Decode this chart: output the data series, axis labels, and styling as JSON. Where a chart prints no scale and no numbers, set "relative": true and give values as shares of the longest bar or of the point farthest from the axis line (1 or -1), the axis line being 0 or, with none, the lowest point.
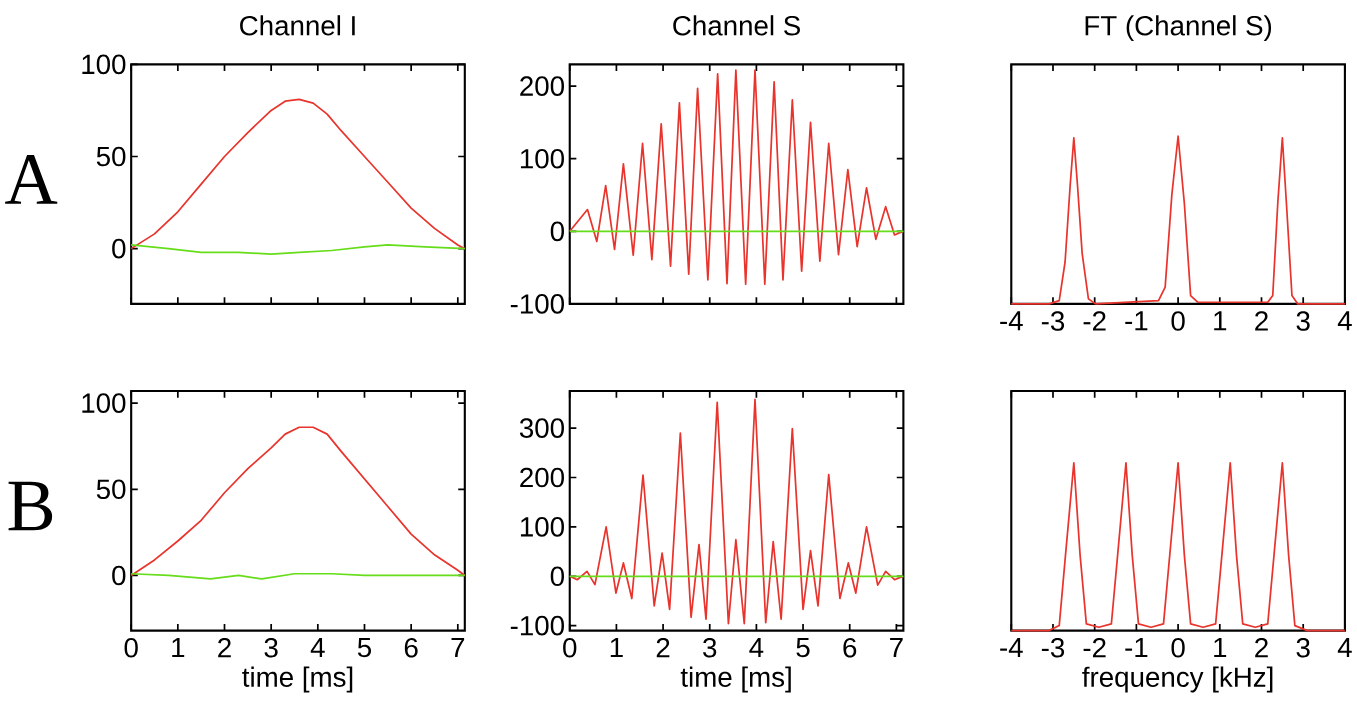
{
  "chart_data": [
    {
      "type": "line",
      "title": "Channel I",
      "annotations": [
        "A"
      ],
      "xlim": [
        0,
        7.15
      ],
      "ylim": [
        -30,
        100
      ],
      "xticks": [
        0,
        1,
        2,
        3,
        4,
        5,
        6,
        7
      ],
      "yticks": [
        0,
        50,
        100
      ],
      "tick_labels": "y",
      "series": [
        {
          "color": "#e8342c",
          "x": [
            0,
            0.5,
            1,
            1.5,
            2,
            2.5,
            3,
            3.3,
            3.6,
            3.9,
            4.2,
            4.5,
            5,
            5.5,
            6,
            6.5,
            7,
            7.15
          ],
          "values": [
            0,
            8,
            20,
            35,
            50,
            63,
            75,
            80,
            81,
            79,
            73,
            64,
            50,
            36,
            22,
            11,
            2,
            0
          ]
        },
        {
          "color": "#66dd1a",
          "x": [
            0,
            0.8,
            1.5,
            2.3,
            3,
            3.6,
            4.3,
            5,
            5.5,
            6.3,
            7.15
          ],
          "values": [
            2,
            0,
            -2,
            -2,
            -3,
            -2,
            -1,
            1,
            2,
            1,
            0
          ]
        }
      ]
    },
    {
      "type": "line",
      "title": "Channel S",
      "xlim": [
        0,
        7.15
      ],
      "ylim": [
        -100,
        230
      ],
      "xticks": [
        0,
        1,
        2,
        3,
        4,
        5,
        6,
        7
      ],
      "yticks": [
        -100,
        0,
        100,
        200
      ],
      "tick_labels": "y",
      "series": [
        {
          "color": "#e8342c",
          "x": [
            0,
            0.38,
            0.58,
            0.77,
            0.96,
            1.15,
            1.36,
            1.56,
            1.76,
            1.96,
            2.16,
            2.35,
            2.55,
            2.74,
            2.96,
            3.17,
            3.37,
            3.56,
            3.77,
            3.97,
            4.18,
            4.38,
            4.57,
            4.77,
            4.97,
            5.16,
            5.36,
            5.55,
            5.76,
            5.96,
            6.16,
            6.36,
            6.56,
            6.77,
            6.96,
            7.15
          ],
          "values": [
            0,
            30,
            -14,
            63,
            -25,
            93,
            -33,
            121,
            -39,
            148,
            -48,
            177,
            -59,
            197,
            -67,
            217,
            -72,
            222,
            -73,
            222,
            -73,
            206,
            -67,
            181,
            -55,
            150,
            -41,
            121,
            -32,
            85,
            -21,
            60,
            -11,
            34,
            -5,
            0
          ]
        },
        {
          "color": "#66dd1a",
          "x": [
            0,
            2,
            4,
            6,
            7.15
          ],
          "values": [
            0,
            0,
            0,
            0,
            0
          ]
        }
      ]
    },
    {
      "type": "line",
      "title": "FT (Channel S)",
      "relative": true,
      "xlim": [
        -4,
        4
      ],
      "xticks": [
        -4,
        -3,
        -2,
        -1,
        0,
        1,
        2,
        3,
        4
      ],
      "tick_labels": "x",
      "series": [
        {
          "color": "#e8342c",
          "x": [
            -4,
            -3.09,
            -2.85,
            -2.71,
            -2.59,
            -2.5,
            -2.41,
            -2.3,
            -2.15,
            -1.98,
            -0.47,
            -0.31,
            -0.15,
            0,
            0.15,
            0.3,
            0.47,
            2.15,
            2.27,
            2.39,
            2.5,
            2.61,
            2.73,
            2.87,
            4
          ],
          "values": [
            0,
            0,
            0.02,
            0.25,
            0.7,
            0.99,
            0.7,
            0.3,
            0.03,
            0,
            0.02,
            0.1,
            0.65,
            1,
            0.6,
            0.05,
            0.01,
            0.01,
            0.05,
            0.6,
            0.99,
            0.55,
            0.05,
            0,
            0
          ]
        }
      ]
    },
    {
      "type": "line",
      "annotations": [
        "B"
      ],
      "xlabel": "time [ms]",
      "xlim": [
        0,
        7.15
      ],
      "ylim": [
        -32,
        107
      ],
      "xticks": [
        0,
        1,
        2,
        3,
        4,
        5,
        6,
        7
      ],
      "yticks": [
        0,
        50,
        100
      ],
      "series": [
        {
          "color": "#e8342c",
          "x": [
            0,
            0.5,
            1,
            1.5,
            2,
            2.5,
            3,
            3.3,
            3.6,
            3.9,
            4.2,
            4.5,
            5,
            5.5,
            6,
            6.5,
            7,
            7.15
          ],
          "values": [
            0,
            9,
            20,
            32,
            48,
            62,
            74,
            82,
            86,
            86,
            82,
            72,
            56,
            40,
            24,
            12,
            3,
            0
          ]
        },
        {
          "color": "#66dd1a",
          "x": [
            0,
            0.8,
            1.7,
            2.3,
            2.8,
            3.5,
            4.3,
            5,
            6,
            7.15
          ],
          "values": [
            1,
            0,
            -2,
            0,
            -2,
            1,
            1,
            0,
            0,
            0
          ]
        }
      ]
    },
    {
      "type": "line",
      "xlabel": "time [ms]",
      "xlim": [
        0,
        7.15
      ],
      "ylim": [
        -110,
        375
      ],
      "xticks": [
        0,
        1,
        2,
        3,
        4,
        5,
        6,
        7
      ],
      "yticks": [
        -100,
        0,
        100,
        200,
        300
      ],
      "series": [
        {
          "color": "#e8342c",
          "x": [
            0,
            0.16,
            0.37,
            0.54,
            0.78,
            0.99,
            1.15,
            1.33,
            1.57,
            1.81,
            1.98,
            2.14,
            2.37,
            2.6,
            2.77,
            2.92,
            3.16,
            3.4,
            3.56,
            3.74,
            3.97,
            4.2,
            4.36,
            4.53,
            4.77,
            5.0,
            5.16,
            5.32,
            5.55,
            5.79,
            5.97,
            6.13,
            6.36,
            6.6,
            6.77,
            6.96,
            7.15
          ],
          "values": [
            0,
            -7,
            10,
            -17,
            100,
            -34,
            27,
            -45,
            205,
            -60,
            47,
            -67,
            290,
            -83,
            64,
            -87,
            352,
            -96,
            74,
            -96,
            358,
            -94,
            70,
            -87,
            299,
            -67,
            52,
            -60,
            206,
            -45,
            27,
            -34,
            100,
            -18,
            10,
            -7,
            0
          ]
        },
        {
          "color": "#66dd1a",
          "x": [
            0,
            2,
            4,
            6,
            7.15
          ],
          "values": [
            0,
            0,
            0,
            0,
            0
          ]
        }
      ]
    },
    {
      "type": "line",
      "xlabel": "frequency [kHz]",
      "relative": true,
      "xlim": [
        -4,
        4
      ],
      "xticks": [
        -4,
        -3,
        -2,
        -1,
        0,
        1,
        2,
        3,
        4
      ],
      "tick_labels": "x",
      "series": [
        {
          "color": "#e8342c",
          "x": [
            -4,
            -3.1,
            -2.85,
            -2.7,
            -2.5,
            -2.35,
            -2.2,
            -1.9,
            -1.6,
            -1.45,
            -1.25,
            -1.1,
            -0.95,
            -0.65,
            -0.35,
            -0.2,
            0,
            0.15,
            0.3,
            0.6,
            0.9,
            1.05,
            1.25,
            1.4,
            1.55,
            1.85,
            2.15,
            2.3,
            2.5,
            2.65,
            2.8,
            3.1,
            4
          ],
          "values": [
            0,
            0,
            0.03,
            0.45,
            1,
            0.45,
            0.04,
            0.02,
            0.04,
            0.45,
            1,
            0.45,
            0.04,
            0.02,
            0.04,
            0.45,
            1,
            0.45,
            0.04,
            0.02,
            0.04,
            0.45,
            1,
            0.45,
            0.04,
            0.02,
            0.04,
            0.45,
            1,
            0.45,
            0.03,
            0,
            0
          ]
        }
      ]
    }
  ]
}
